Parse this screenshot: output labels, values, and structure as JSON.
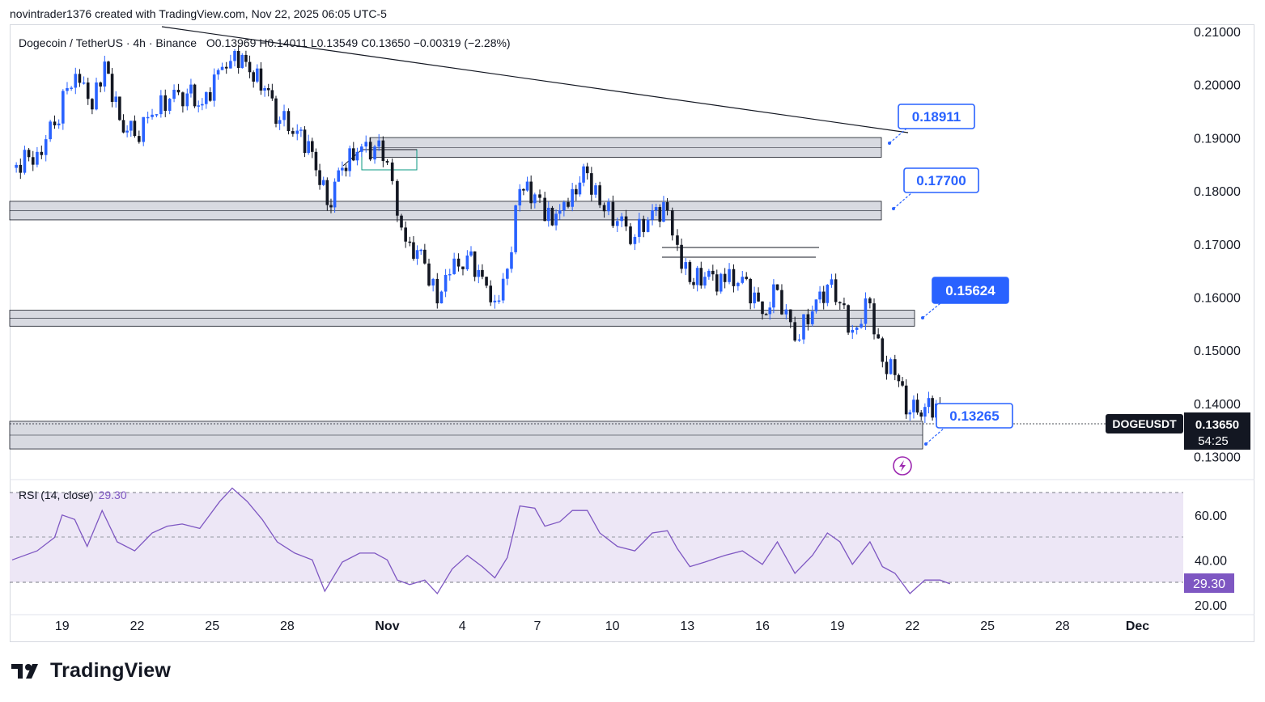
{
  "header": {
    "author_line": "novintrader1376 created with TradingView.com, Nov 22, 2025 06:05 UTC-5"
  },
  "symbol": {
    "title": "Dogecoin / TetherUS · 4h · Binance",
    "ohlc": "O0.13969 H0.14011 L0.13549 C0.13650 −0.00319 (−2.28%)",
    "ticker": "DOGEUSDT",
    "last_price": "0.13650",
    "countdown": "54:25"
  },
  "rsi": {
    "label": "RSI (14, close)",
    "value_label": "29.30"
  },
  "brand": {
    "name": "TradingView"
  },
  "colors": {
    "up": "#2962ff",
    "down": "#131722",
    "zone": "#d1d4dc",
    "rsi": "#7e57c2",
    "rsi_fill": "#ede7f6",
    "callout": "#2962ff"
  },
  "chart_data": [
    {
      "type": "candlestick",
      "title": "Dogecoin / TetherUS · 4h · Binance",
      "y_ticks": [
        "0.21000",
        "0.20000",
        "0.19000",
        "0.18000",
        "0.17000",
        "0.16000",
        "0.15000",
        "0.14000",
        "0.13000"
      ],
      "x_ticks": [
        "19",
        "22",
        "25",
        "28",
        "Nov",
        "4",
        "7",
        "10",
        "13",
        "16",
        "19",
        "22",
        "25",
        "28",
        "Dec"
      ],
      "ylim": [
        0.1255,
        0.213
      ],
      "close_series": [
        {
          "t": 0.0,
          "c": 0.1845
        },
        {
          "t": 1.0,
          "c": 0.1875
        },
        {
          "t": 1.7,
          "c": 0.1925
        },
        {
          "t": 2.2,
          "c": 0.1995
        },
        {
          "t": 2.7,
          "c": 0.2005
        },
        {
          "t": 3.2,
          "c": 0.1955
        },
        {
          "t": 3.7,
          "c": 0.2045
        },
        {
          "t": 4.3,
          "c": 0.1935
        },
        {
          "t": 4.9,
          "c": 0.1905
        },
        {
          "t": 5.6,
          "c": 0.1945
        },
        {
          "t": 6.3,
          "c": 0.1975
        },
        {
          "t": 7.0,
          "c": 0.1985
        },
        {
          "t": 7.6,
          "c": 0.1965
        },
        {
          "t": 8.4,
          "c": 0.2035
        },
        {
          "t": 8.9,
          "c": 0.2065
        },
        {
          "t": 9.5,
          "c": 0.2025
        },
        {
          "t": 10.1,
          "c": 0.1995
        },
        {
          "t": 10.7,
          "c": 0.1935
        },
        {
          "t": 11.4,
          "c": 0.1915
        },
        {
          "t": 12.0,
          "c": 0.1875
        },
        {
          "t": 12.6,
          "c": 0.1775
        },
        {
          "t": 13.2,
          "c": 0.1845
        },
        {
          "t": 13.8,
          "c": 0.1875
        },
        {
          "t": 14.5,
          "c": 0.1885
        },
        {
          "t": 15.0,
          "c": 0.1855
        },
        {
          "t": 15.4,
          "c": 0.1755
        },
        {
          "t": 15.9,
          "c": 0.1705
        },
        {
          "t": 16.5,
          "c": 0.1665
        },
        {
          "t": 17.0,
          "c": 0.159
        },
        {
          "t": 17.5,
          "c": 0.1645
        },
        {
          "t": 18.2,
          "c": 0.168
        },
        {
          "t": 18.8,
          "c": 0.164
        },
        {
          "t": 19.3,
          "c": 0.1595
        },
        {
          "t": 19.8,
          "c": 0.1655
        },
        {
          "t": 20.3,
          "c": 0.1805
        },
        {
          "t": 20.9,
          "c": 0.1795
        },
        {
          "t": 21.3,
          "c": 0.1745
        },
        {
          "t": 21.9,
          "c": 0.1765
        },
        {
          "t": 22.4,
          "c": 0.1805
        },
        {
          "t": 23.0,
          "c": 0.1835
        },
        {
          "t": 23.5,
          "c": 0.1775
        },
        {
          "t": 24.2,
          "c": 0.1745
        },
        {
          "t": 24.9,
          "c": 0.1715
        },
        {
          "t": 25.6,
          "c": 0.1765
        },
        {
          "t": 26.2,
          "c": 0.1765
        },
        {
          "t": 26.6,
          "c": 0.17
        },
        {
          "t": 27.1,
          "c": 0.163
        },
        {
          "t": 27.7,
          "c": 0.164
        },
        {
          "t": 28.5,
          "c": 0.163
        },
        {
          "t": 29.2,
          "c": 0.164
        },
        {
          "t": 30.0,
          "c": 0.157
        },
        {
          "t": 30.6,
          "c": 0.1615
        },
        {
          "t": 31.3,
          "c": 0.152
        },
        {
          "t": 32.0,
          "c": 0.1575
        },
        {
          "t": 32.6,
          "c": 0.1625
        },
        {
          "t": 33.1,
          "c": 0.159
        },
        {
          "t": 33.6,
          "c": 0.154
        },
        {
          "t": 34.3,
          "c": 0.159
        },
        {
          "t": 34.8,
          "c": 0.148
        },
        {
          "t": 35.3,
          "c": 0.1455
        },
        {
          "t": 35.9,
          "c": 0.1385
        },
        {
          "t": 36.5,
          "c": 0.1395
        },
        {
          "t": 37.1,
          "c": 0.1397
        },
        {
          "t": 37.5,
          "c": 0.1365
        }
      ],
      "horizontal_zones": [
        {
          "low": 0.1865,
          "high": 0.1902
        },
        {
          "low": 0.1747,
          "high": 0.1782
        },
        {
          "low": 0.1547,
          "high": 0.1577
        },
        {
          "low": 0.1316,
          "high": 0.1368
        }
      ],
      "callouts": [
        "0.18911",
        "0.17700",
        "0.15624",
        "0.13265"
      ]
    },
    {
      "type": "line",
      "title": "RSI (14, close)",
      "y_ticks": [
        "60.00",
        "40.00",
        "20.00"
      ],
      "bands": [
        70,
        50,
        30
      ],
      "last_value": 29.3,
      "series": [
        {
          "t": 0.0,
          "v": 40
        },
        {
          "t": 1.0,
          "v": 44
        },
        {
          "t": 1.7,
          "v": 50
        },
        {
          "t": 2.0,
          "v": 60
        },
        {
          "t": 2.5,
          "v": 58
        },
        {
          "t": 3.0,
          "v": 46
        },
        {
          "t": 3.6,
          "v": 62
        },
        {
          "t": 4.2,
          "v": 48
        },
        {
          "t": 4.9,
          "v": 44
        },
        {
          "t": 5.6,
          "v": 52
        },
        {
          "t": 6.2,
          "v": 55
        },
        {
          "t": 6.8,
          "v": 56
        },
        {
          "t": 7.5,
          "v": 54
        },
        {
          "t": 8.3,
          "v": 66
        },
        {
          "t": 8.8,
          "v": 72
        },
        {
          "t": 9.4,
          "v": 66
        },
        {
          "t": 10.0,
          "v": 58
        },
        {
          "t": 10.6,
          "v": 48
        },
        {
          "t": 11.3,
          "v": 43
        },
        {
          "t": 12.0,
          "v": 40
        },
        {
          "t": 12.5,
          "v": 26
        },
        {
          "t": 13.2,
          "v": 39
        },
        {
          "t": 13.9,
          "v": 43
        },
        {
          "t": 14.5,
          "v": 43
        },
        {
          "t": 15.0,
          "v": 40
        },
        {
          "t": 15.4,
          "v": 31
        },
        {
          "t": 15.9,
          "v": 29
        },
        {
          "t": 16.5,
          "v": 31
        },
        {
          "t": 17.0,
          "v": 25
        },
        {
          "t": 17.6,
          "v": 36
        },
        {
          "t": 18.2,
          "v": 42
        },
        {
          "t": 18.8,
          "v": 37
        },
        {
          "t": 19.3,
          "v": 32
        },
        {
          "t": 19.8,
          "v": 41
        },
        {
          "t": 20.3,
          "v": 64
        },
        {
          "t": 20.9,
          "v": 63
        },
        {
          "t": 21.3,
          "v": 55
        },
        {
          "t": 21.9,
          "v": 57
        },
        {
          "t": 22.4,
          "v": 62
        },
        {
          "t": 23.0,
          "v": 62
        },
        {
          "t": 23.5,
          "v": 52
        },
        {
          "t": 24.2,
          "v": 46
        },
        {
          "t": 24.9,
          "v": 44
        },
        {
          "t": 25.6,
          "v": 52
        },
        {
          "t": 26.2,
          "v": 53
        },
        {
          "t": 26.6,
          "v": 45
        },
        {
          "t": 27.1,
          "v": 37
        },
        {
          "t": 27.7,
          "v": 39
        },
        {
          "t": 28.5,
          "v": 42
        },
        {
          "t": 29.2,
          "v": 44
        },
        {
          "t": 30.0,
          "v": 38
        },
        {
          "t": 30.6,
          "v": 48
        },
        {
          "t": 31.3,
          "v": 34
        },
        {
          "t": 32.0,
          "v": 42
        },
        {
          "t": 32.6,
          "v": 52
        },
        {
          "t": 33.1,
          "v": 48
        },
        {
          "t": 33.6,
          "v": 38
        },
        {
          "t": 34.3,
          "v": 48
        },
        {
          "t": 34.8,
          "v": 37
        },
        {
          "t": 35.3,
          "v": 34
        },
        {
          "t": 35.9,
          "v": 25
        },
        {
          "t": 36.5,
          "v": 31
        },
        {
          "t": 37.1,
          "v": 31
        },
        {
          "t": 37.5,
          "v": 29.3
        }
      ]
    }
  ]
}
